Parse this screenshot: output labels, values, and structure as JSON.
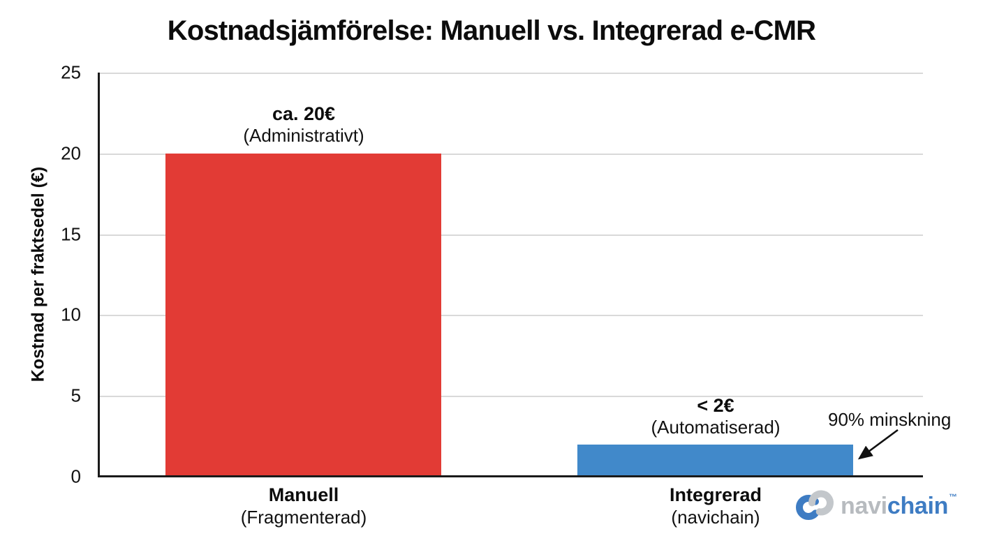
{
  "chart_data": {
    "type": "bar",
    "title": "Kostnadsjämförelse: Manuell vs. Integrerad e-CMR",
    "xlabel": "",
    "ylabel": "Kostnad per fraktsedel (€)",
    "ylim": [
      0,
      25
    ],
    "yticks": [
      25,
      20,
      15,
      10,
      5,
      0
    ],
    "grid": "horizontal, light gray",
    "legend": "none",
    "categories": [
      "Manuell",
      "Integrerad"
    ],
    "values": [
      20,
      2
    ],
    "bars": [
      {
        "category": "Manuell",
        "category_sublabel": "(Fragmenterad)",
        "value": 20,
        "value_label": "ca. 20€",
        "value_sublabel": "(Administrativt)",
        "color": "#e23b35"
      },
      {
        "category": "Integrerad",
        "category_sublabel": "(navichain)",
        "value": 2,
        "value_label": "< 2€",
        "value_sublabel": "(Automatiserad)",
        "color": "#4189ca"
      }
    ],
    "annotations": [
      {
        "text": "90% minskning",
        "arrow_points_to": "top-right corner of Integrerad bar"
      }
    ]
  },
  "branding": {
    "wordmark_part1": "navi",
    "wordmark_part2": "chain",
    "trademark": "™",
    "blue": "#3e7cc3",
    "gray": "#c3c7cb"
  },
  "style_colors": {
    "background": "#ffffff",
    "bar_red": "#e23b35",
    "bar_blue": "#4189ca",
    "axis": "#1a1a1a",
    "gridline": "#d9d9d9",
    "text": "#111111"
  }
}
